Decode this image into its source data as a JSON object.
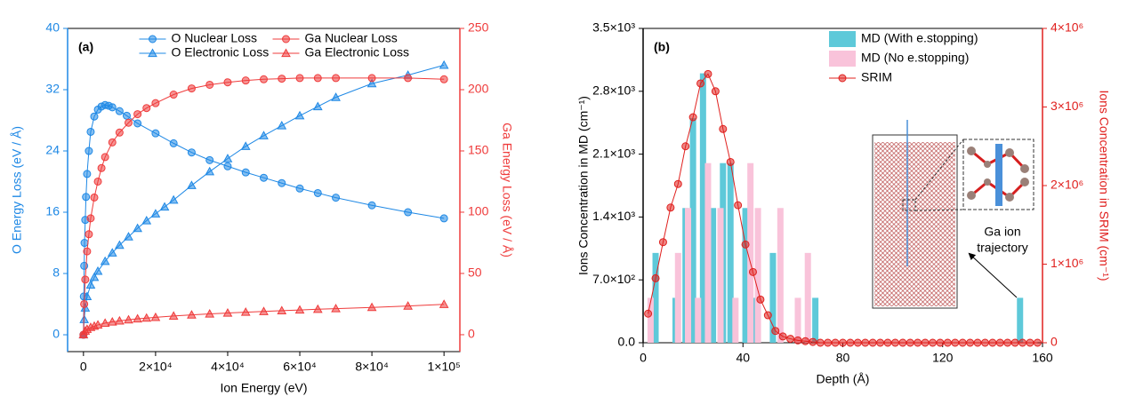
{
  "chart_data": [
    {
      "type": "line",
      "label": "(a)",
      "x_label": "Ion Energy (eV)",
      "y_label": "O Energy Loss (eV / Å)",
      "y2_label": "Ga Energy Loss (eV / Å)",
      "xlim": [
        -4400,
        104400
      ],
      "ylim": [
        -2.2,
        40
      ],
      "y2lim": [
        -13.8,
        250
      ],
      "xticks": [
        0,
        {
          "value": 20000,
          "label": "2×10⁴"
        },
        {
          "value": 40000,
          "label": "4×10⁴"
        },
        {
          "value": 60000,
          "label": "6×10⁴"
        },
        {
          "value": 80000,
          "label": "8×10⁴"
        },
        {
          "value": 100000,
          "label": "1×10⁵"
        }
      ],
      "yticks": [
        0,
        8,
        16,
        24,
        32,
        40
      ],
      "y2ticks": [
        0,
        50,
        100,
        150,
        200,
        250
      ],
      "ycolor": "#1e88e5",
      "y2color": "#ef3b3b",
      "legend": "upper center",
      "legend_columns": 2,
      "series": [
        {
          "name": "O Nuclear Loss",
          "color": "#1e88e5",
          "marker": "circle",
          "x": [
            0,
            100,
            200,
            300,
            500,
            700,
            1000,
            1500,
            2000,
            3000,
            4000,
            5000,
            6000,
            7000,
            8000,
            10000,
            12000,
            15000,
            20000,
            25000,
            30000,
            35000,
            40000,
            45000,
            50000,
            55000,
            60000,
            65000,
            70000,
            80000,
            90000,
            100000
          ],
          "values": [
            0,
            5,
            9,
            12,
            15,
            18,
            21,
            24,
            26.5,
            28.5,
            29.4,
            29.8,
            30,
            29.9,
            29.7,
            29.2,
            28.6,
            27.6,
            26.3,
            25,
            23.8,
            22.8,
            22,
            21.2,
            20.5,
            19.8,
            19.1,
            18.5,
            17.9,
            16.9,
            16,
            15.2
          ]
        },
        {
          "name": "O Electronic Loss",
          "color": "#1e88e5",
          "marker": "triangle",
          "x": [
            0,
            200,
            500,
            1000,
            2000,
            3000,
            4000,
            6000,
            8000,
            10000,
            12500,
            15000,
            17500,
            20000,
            22500,
            25000,
            30000,
            35000,
            40000,
            45000,
            50000,
            55000,
            60000,
            65000,
            70000,
            80000,
            90000,
            100000
          ],
          "values": [
            0,
            2,
            3.5,
            5,
            6.5,
            7.5,
            8.3,
            9.6,
            10.7,
            11.7,
            12.8,
            13.9,
            14.9,
            15.8,
            16.7,
            17.6,
            19.5,
            21.3,
            23,
            24.6,
            26,
            27.3,
            28.6,
            29.8,
            31,
            32.8,
            33.9,
            35.2
          ]
        },
        {
          "name": "Ga Nuclear Loss",
          "color": "#ef3b3b",
          "marker": "circle",
          "axis": "y2",
          "x": [
            0,
            200,
            500,
            1000,
            1500,
            2000,
            3000,
            4000,
            5000,
            6000,
            8000,
            10000,
            12500,
            15000,
            17500,
            20000,
            25000,
            30000,
            35000,
            40000,
            45000,
            50000,
            55000,
            60000,
            65000,
            70000,
            80000,
            90000,
            100000
          ],
          "values": [
            0,
            25,
            45,
            68,
            82,
            95,
            112,
            125,
            136,
            145,
            157,
            165,
            173,
            180,
            185,
            189,
            196,
            201,
            204,
            206,
            207.5,
            208.5,
            209,
            209.5,
            209.5,
            209.5,
            209.5,
            209.5,
            208.5
          ]
        },
        {
          "name": "Ga Electronic Loss",
          "color": "#ef3b3b",
          "marker": "triangle",
          "axis": "y2",
          "x": [
            0,
            500,
            1000,
            2000,
            3000,
            4000,
            6000,
            8000,
            10000,
            12500,
            15000,
            17500,
            20000,
            25000,
            30000,
            35000,
            40000,
            45000,
            50000,
            55000,
            60000,
            65000,
            70000,
            80000,
            90000,
            100000
          ],
          "values": [
            0,
            3,
            4.5,
            6,
            7,
            8,
            9.5,
            10.5,
            11.3,
            12.2,
            13,
            13.6,
            14.2,
            15.3,
            16.2,
            17,
            17.7,
            18.4,
            19,
            19.6,
            20.2,
            20.8,
            21.3,
            22.3,
            23.4,
            24.8
          ]
        }
      ]
    },
    {
      "type": "bar",
      "label": "(b)",
      "x_label": "Depth (Å)",
      "y_label": "Ions Concentration in MD (cm⁻¹)",
      "y2_label": "Ions Concentration in SRIM (cm⁻¹)",
      "xlim": [
        0,
        160
      ],
      "ylim": [
        0,
        3500
      ],
      "y2lim": [
        0,
        4000000
      ],
      "xticks": [
        0,
        40,
        80,
        120,
        160
      ],
      "yticks": [
        {
          "value": 0,
          "label": "0.0"
        },
        {
          "value": 700,
          "label": "7.0×10²"
        },
        {
          "value": 1400,
          "label": "1.4×10³"
        },
        {
          "value": 2100,
          "label": "2.1×10³"
        },
        {
          "value": 2800,
          "label": "2.8×10³"
        },
        {
          "value": 3500,
          "label": "3.5×10³"
        }
      ],
      "y2ticks": [
        0,
        {
          "value": 1000000,
          "label": "1×10⁶"
        },
        {
          "value": 2000000,
          "label": "2×10⁶"
        },
        {
          "value": 3000000,
          "label": "3×10⁶"
        },
        {
          "value": 4000000,
          "label": "4×10⁶"
        }
      ],
      "ycolor": "#000000",
      "y2color": "#e0201e",
      "legend": "upper right",
      "legend_columns": 1,
      "annotation_lines": [
        "Ga ion",
        "trajectory"
      ],
      "series": [
        {
          "name": "MD (With e.stopping)",
          "type": "bar",
          "color": "#5ec9d9",
          "x": [
            5,
            13,
            17,
            20,
            24,
            28,
            32,
            35,
            41,
            44,
            52,
            69,
            151
          ],
          "values": [
            1000,
            500,
            1500,
            2500,
            3000,
            1500,
            2000,
            2000,
            1500,
            500,
            1000,
            500,
            500
          ]
        },
        {
          "name": "MD (No e.stopping)",
          "type": "bar",
          "color": "#f9c3da",
          "x": [
            3,
            14,
            18,
            22,
            26,
            31,
            37,
            43,
            46,
            55,
            62,
            66
          ],
          "values": [
            500,
            1000,
            1500,
            500,
            2000,
            1500,
            500,
            2000,
            1500,
            1500,
            500,
            1000
          ]
        },
        {
          "name": "SRIM",
          "type": "line",
          "color": "#e0201e",
          "marker": "circle",
          "axis": "y2",
          "x": [
            2,
            5,
            8,
            11,
            14,
            17,
            20,
            23,
            26,
            29,
            32,
            35,
            38,
            41,
            44,
            47,
            50,
            53,
            56,
            59,
            62,
            65,
            68,
            71,
            74,
            77,
            80,
            83,
            86,
            89,
            92,
            95,
            98,
            101,
            104,
            107,
            110,
            113,
            116,
            119,
            122,
            125,
            128,
            131,
            134,
            137,
            140,
            143,
            146,
            149,
            152,
            155,
            158
          ],
          "values": [
            370000,
            820000,
            1280000,
            1720000,
            2020000,
            2500000,
            2870000,
            3300000,
            3420000,
            3200000,
            2720000,
            2300000,
            1750000,
            1250000,
            900000,
            550000,
            350000,
            150000,
            80000,
            50000,
            30000,
            20000,
            10000,
            0,
            0,
            0,
            0,
            0,
            0,
            0,
            0,
            0,
            0,
            0,
            0,
            0,
            0,
            0,
            0,
            0,
            0,
            0,
            0,
            0,
            0,
            0,
            0,
            0,
            0,
            0,
            0,
            0,
            0
          ]
        }
      ]
    }
  ]
}
